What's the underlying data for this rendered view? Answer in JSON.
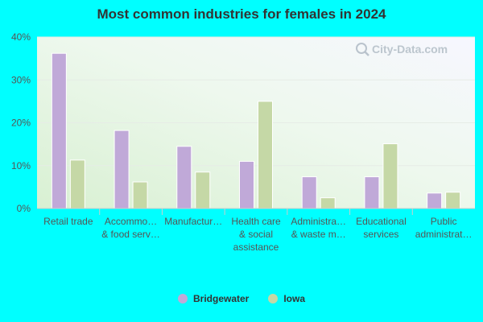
{
  "chart_data": {
    "type": "bar",
    "title": "Most common industries for females in 2024",
    "xlabel": "",
    "ylabel": "",
    "ylim": [
      0,
      40
    ],
    "y_ticks": [
      "0%",
      "10%",
      "20%",
      "30%",
      "40%"
    ],
    "categories": [
      [
        "Retail trade"
      ],
      [
        "Accommo…",
        "& food serv…"
      ],
      [
        "Manufactur…"
      ],
      [
        "Health care",
        "& social",
        "assistance"
      ],
      [
        "Administra…",
        "& waste m…"
      ],
      [
        "Educational",
        "services"
      ],
      [
        "Public",
        "administrat…"
      ]
    ],
    "series": [
      {
        "name": "Bridgewater",
        "color": "#c0a9d8",
        "values": [
          36.2,
          18.2,
          14.5,
          11.0,
          7.4,
          7.4,
          3.6
        ]
      },
      {
        "name": "Iowa",
        "color": "#c5d8a6",
        "values": [
          11.3,
          6.2,
          8.5,
          25.0,
          2.5,
          15.1,
          3.8
        ]
      }
    ],
    "grid": true,
    "legend_position": "bottom"
  },
  "watermark": {
    "text": "City-Data.com",
    "icon": "magnifier-icon"
  }
}
